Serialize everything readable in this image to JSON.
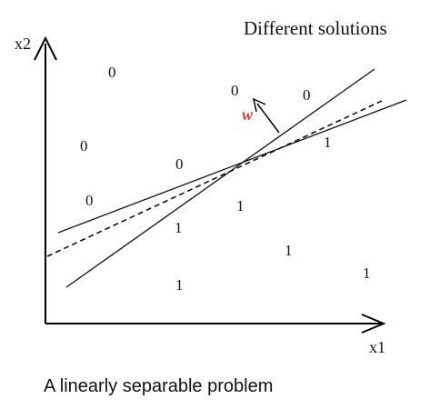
{
  "diagram": {
    "title": "Different solutions",
    "caption": "A linearly separable problem",
    "axes": {
      "x_label": "x1",
      "y_label": "x2"
    },
    "weight_label": "w",
    "weight_color": "#e53935",
    "class_0_label": "0",
    "class_1_label": "1",
    "points": [
      {
        "label": "0"
      },
      {
        "label": "0"
      },
      {
        "label": "0"
      },
      {
        "label": "0"
      },
      {
        "label": "0"
      },
      {
        "label": "0"
      },
      {
        "label": "1"
      },
      {
        "label": "1"
      },
      {
        "label": "1"
      },
      {
        "label": "1"
      },
      {
        "label": "1"
      },
      {
        "label": "1"
      }
    ]
  }
}
